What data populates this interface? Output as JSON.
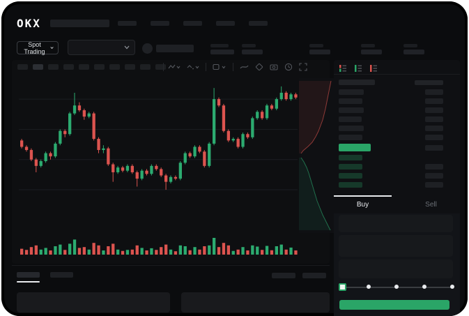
{
  "app": {
    "title": "OKX spot trading terminal"
  },
  "colors": {
    "accent_green": "#2aa567",
    "candle_green": "#2cab70",
    "candle_red": "#dc544f",
    "bid_row_tint": "#16392a",
    "grid_line": "#1b1e22",
    "slider_track": "#3a3d41",
    "tab_underline": "#e9ebee"
  },
  "topbar": {
    "logo": "OKX",
    "nav_item_count": 5
  },
  "ticker": {
    "market_selector_label": "Spot Trading",
    "stat_block_count": 5
  },
  "chart_toolbar": {
    "timeframe_count": 10,
    "timeframe_selected_index": 1,
    "icons": [
      "chart-type-icon",
      "chart-style-icon",
      "indicators-icon",
      "trend-line-icon",
      "tag-icon",
      "camera-icon",
      "clock-icon",
      "fullscreen-icon"
    ]
  },
  "chart_data": {
    "type": "candlestick",
    "title": "",
    "xlabel": "",
    "ylabel": "",
    "note": "no axis labels visible; prices normalized 0-100 of pane height",
    "price_scale": [
      0,
      100
    ],
    "gridlines_v": [
      88,
      69,
      50,
      31
    ],
    "candles_ohlc": [
      [
        62,
        63,
        57,
        58
      ],
      [
        58,
        59,
        55,
        56
      ],
      [
        56,
        57,
        49,
        50
      ],
      [
        50,
        51,
        42,
        46
      ],
      [
        46,
        50,
        45,
        49
      ],
      [
        49,
        55,
        48,
        54
      ],
      [
        54,
        55,
        50,
        52
      ],
      [
        52,
        61,
        51,
        60
      ],
      [
        60,
        69,
        59,
        68
      ],
      [
        68,
        69,
        64,
        66
      ],
      [
        66,
        80,
        65,
        79
      ],
      [
        79,
        92,
        78,
        84
      ],
      [
        84,
        86,
        80,
        81
      ],
      [
        81,
        82,
        75,
        77
      ],
      [
        77,
        80,
        76,
        79
      ],
      [
        79,
        80,
        62,
        63
      ],
      [
        63,
        64,
        54,
        56
      ],
      [
        56,
        59,
        54,
        57
      ],
      [
        57,
        58,
        46,
        47
      ],
      [
        47,
        48,
        36,
        42
      ],
      [
        42,
        46,
        41,
        45
      ],
      [
        45,
        46,
        42,
        43
      ],
      [
        43,
        47,
        42,
        46
      ],
      [
        46,
        47,
        41,
        42
      ],
      [
        42,
        43,
        33,
        38
      ],
      [
        38,
        44,
        37,
        43
      ],
      [
        43,
        44,
        40,
        41
      ],
      [
        41,
        47,
        40,
        46
      ],
      [
        46,
        47,
        43,
        44
      ],
      [
        44,
        45,
        39,
        40
      ],
      [
        40,
        41,
        31,
        36
      ],
      [
        36,
        40,
        35,
        39
      ],
      [
        39,
        40,
        37,
        38
      ],
      [
        38,
        49,
        37,
        48
      ],
      [
        48,
        55,
        47,
        54
      ],
      [
        54,
        55,
        51,
        52
      ],
      [
        52,
        59,
        51,
        58
      ],
      [
        58,
        59,
        54,
        55
      ],
      [
        55,
        56,
        45,
        46
      ],
      [
        46,
        61,
        45,
        60
      ],
      [
        60,
        95,
        59,
        88
      ],
      [
        88,
        89,
        83,
        84
      ],
      [
        84,
        85,
        67,
        68
      ],
      [
        68,
        69,
        61,
        62
      ],
      [
        62,
        64,
        61,
        63
      ],
      [
        63,
        64,
        57,
        58
      ],
      [
        58,
        67,
        57,
        66
      ],
      [
        66,
        67,
        63,
        64
      ],
      [
        64,
        77,
        63,
        76
      ],
      [
        76,
        81,
        75,
        80
      ],
      [
        80,
        81,
        75,
        76
      ],
      [
        76,
        85,
        75,
        84
      ],
      [
        84,
        85,
        81,
        82
      ],
      [
        82,
        89,
        81,
        88
      ],
      [
        88,
        96,
        87,
        92
      ],
      [
        92,
        93,
        87,
        88
      ],
      [
        88,
        92,
        87,
        91
      ],
      [
        91,
        92,
        88,
        89
      ]
    ],
    "volumes": [
      35,
      28,
      45,
      55,
      30,
      40,
      25,
      50,
      60,
      28,
      65,
      90,
      40,
      45,
      30,
      70,
      55,
      25,
      50,
      65,
      30,
      22,
      28,
      30,
      55,
      40,
      25,
      38,
      28,
      45,
      60,
      30,
      20,
      55,
      50,
      26,
      45,
      30,
      50,
      55,
      100,
      45,
      70,
      55,
      22,
      30,
      45,
      25,
      55,
      48,
      28,
      52,
      26,
      50,
      60,
      30,
      42,
      25
    ],
    "depth": {
      "orientation": "vertical",
      "asks_line": [
        [
          46,
          4
        ],
        [
          44,
          14
        ],
        [
          42,
          24
        ],
        [
          40,
          34
        ],
        [
          38,
          44
        ],
        [
          36,
          52
        ],
        [
          34,
          60
        ],
        [
          31,
          68
        ],
        [
          28,
          76
        ],
        [
          24,
          84
        ],
        [
          19,
          92
        ],
        [
          13,
          98
        ],
        [
          6,
          104
        ],
        [
          3,
          108
        ]
      ],
      "bids_line": [
        [
          3,
          114
        ],
        [
          7,
          120
        ],
        [
          11,
          128
        ],
        [
          14,
          136
        ],
        [
          17,
          146
        ],
        [
          20,
          156
        ],
        [
          23,
          166
        ],
        [
          26,
          176
        ],
        [
          30,
          186
        ],
        [
          34,
          196
        ],
        [
          38,
          204
        ],
        [
          42,
          212
        ],
        [
          45,
          218
        ]
      ]
    }
  },
  "order_book": {
    "view_icons": [
      "book-combined-icon",
      "book-bids-icon",
      "book-asks-icon"
    ],
    "asks_count": 6,
    "bids_count": 4,
    "bids_amount_flags": [
      0,
      1,
      1,
      1
    ],
    "last_price_side": "up"
  },
  "trade_panel": {
    "tabs": [
      {
        "label": "Buy"
      },
      {
        "label": "Sell"
      }
    ],
    "active_tab": "Buy",
    "form_field_count": 3,
    "slider": {
      "stops": 5,
      "value_percent": 0
    },
    "submit_label": ""
  },
  "bottom_panel": {
    "tab_count": 2,
    "active_tab_index": 0,
    "right_control_count": 2,
    "box_count": 2
  }
}
